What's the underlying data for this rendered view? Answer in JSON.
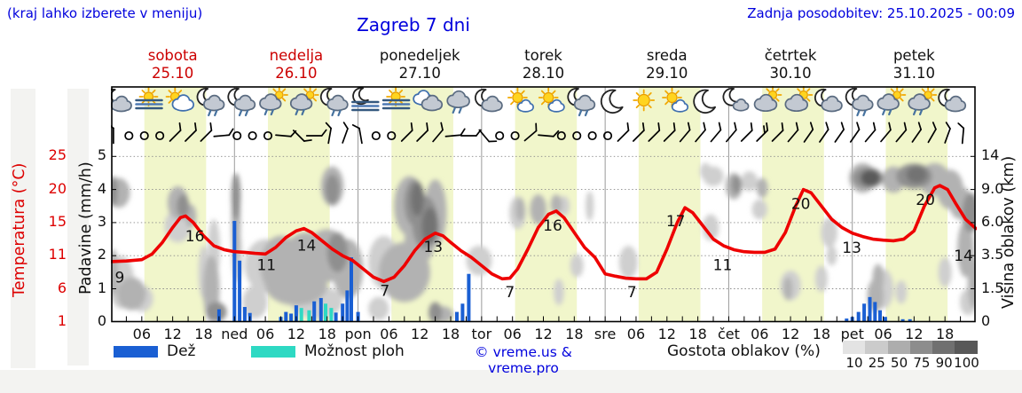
{
  "header": {
    "hint": "(kraj lahko izberete v meniju)",
    "title": "Zagreb 7 dni",
    "updated": "Zadnja posodobitev: 25.10.2025 - 00:09"
  },
  "days": [
    {
      "name": "sobota",
      "date": "25.10",
      "red": true
    },
    {
      "name": "nedelja",
      "date": "26.10",
      "red": true
    },
    {
      "name": "ponedeljek",
      "date": "27.10",
      "red": false
    },
    {
      "name": "torek",
      "date": "28.10",
      "red": false
    },
    {
      "name": "sreda",
      "date": "29.10",
      "red": false
    },
    {
      "name": "četrtek",
      "date": "30.10",
      "red": false
    },
    {
      "name": "petek",
      "date": "31.10",
      "red": false
    }
  ],
  "axes": {
    "temp": {
      "title": "Temperatura (°C)",
      "ticks": [
        "25",
        "20",
        "15",
        "11",
        "6",
        "1"
      ]
    },
    "precip": {
      "title": "Padavine (mm/h)",
      "ticks": [
        "5",
        "4",
        "3",
        "2",
        "1",
        "0"
      ]
    },
    "cloud_height": {
      "title": "Višina oblakov (km)",
      "ticks": [
        "14",
        "9.0",
        "6.0",
        "3.5",
        "1.5",
        "0"
      ]
    },
    "x": {
      "hour_labels": [
        "06",
        "12",
        "18"
      ],
      "day_abbrs": [
        "ned",
        "pon",
        "tor",
        "sre",
        "čet",
        "pet"
      ]
    }
  },
  "legend": {
    "rain": "Dež",
    "showers": "Možnost ploh",
    "copyright": "© vreme.us & vreme.pro",
    "density_title": "Gostota oblakov (%)",
    "density_ticks": [
      "10",
      "25",
      "50",
      "75",
      "90",
      "100"
    ],
    "density_colors": [
      "#e3e3e3",
      "#cbcbcb",
      "#adadad",
      "#8d8d8d",
      "#707070",
      "#585858"
    ]
  },
  "colors": {
    "blue_text": "#0000dd",
    "red_text": "#cc0000",
    "curve": "#ee0000",
    "rain": "#1a5fd3",
    "showers": "#2ed9c3",
    "day_band": "#f1f6cb",
    "grid": "#8a8a8a",
    "border": "#000000"
  },
  "weather_icons": [
    "moon-cloud",
    "sun-fog",
    "sun-cloud",
    "moon-cloud-rain",
    "moon-cloud-rain",
    "sun-cloud-rain",
    "sun-cloud-rain",
    "moon-cloud-rain",
    "moon-fog",
    "sun-fog",
    "cloudy",
    "cloud-rain",
    "moon-cloud",
    "sun-small-cloud",
    "sun-small-cloud",
    "moon-cloud-rain",
    "moon",
    "sun",
    "sun-small-cloud",
    "moon",
    "moon-small-cloud",
    "sun-gray-cloud",
    "sun-gray-cloud",
    "moon-cloud",
    "moon-cloud-rain",
    "sun-cloud-rain",
    "sun-cloud-rain",
    "moon-cloud"
  ],
  "wind": [
    [
      "b",
      -90
    ],
    [
      "c"
    ],
    [
      "c"
    ],
    [
      "c"
    ],
    [
      "b",
      -45
    ],
    [
      "b",
      -45
    ],
    [
      "b",
      -45
    ],
    [
      "b",
      -5
    ],
    [
      "c"
    ],
    [
      "c"
    ],
    [
      "c"
    ],
    [
      "b",
      5
    ],
    [
      "b",
      45
    ],
    [
      "b",
      0
    ],
    [
      "b",
      -80
    ],
    [
      "b",
      -70
    ],
    [
      "b",
      -100
    ],
    [
      "c"
    ],
    [
      "c"
    ],
    [
      "b",
      -45
    ],
    [
      "b",
      -45
    ],
    [
      "b",
      -50
    ],
    [
      "b",
      -5
    ],
    [
      "b",
      0
    ],
    [
      "b",
      50
    ],
    [
      "c"
    ],
    [
      "c"
    ],
    [
      "b",
      -40
    ],
    [
      "b",
      5
    ],
    [
      "c"
    ],
    [
      "c"
    ],
    [
      "c"
    ],
    [
      "c"
    ],
    [
      "b",
      -45
    ],
    [
      "b",
      -45
    ],
    [
      "b",
      -45
    ],
    [
      "b",
      -45
    ],
    [
      "b",
      -50
    ],
    [
      "b",
      -50
    ],
    [
      "b",
      -50
    ],
    [
      "b",
      -50
    ],
    [
      "b",
      -45
    ],
    [
      "b2",
      -45
    ],
    [
      "b",
      -45
    ],
    [
      "b",
      -50
    ],
    [
      "b",
      -55
    ],
    [
      "b",
      -55
    ],
    [
      "b",
      -55
    ],
    [
      "b",
      -55
    ],
    [
      "b",
      -50
    ],
    [
      "b",
      -50
    ],
    [
      "b",
      -50
    ],
    [
      "b",
      -55
    ],
    [
      "b",
      -60
    ],
    [
      "b",
      -70
    ],
    [
      "b",
      -85
    ]
  ],
  "chart_data": {
    "type": "line",
    "title": "Zagreb 7 dni meteogram",
    "hours_total": 168,
    "daylight_hours": [
      6.5,
      18.5
    ],
    "precip_axis_range": [
      0,
      5.33
    ],
    "temp_axis_tick_values": [
      25,
      20,
      15,
      11,
      6,
      1
    ],
    "cloud_axis_tick_km": [
      14,
      9.0,
      6.0,
      3.5,
      1.5,
      0
    ],
    "temperature_curve": [
      [
        0,
        1.82
      ],
      [
        3,
        1.84
      ],
      [
        6,
        1.88
      ],
      [
        8,
        2.05
      ],
      [
        10,
        2.4
      ],
      [
        12,
        2.85
      ],
      [
        13.5,
        3.15
      ],
      [
        14.5,
        3.2
      ],
      [
        16,
        3.0
      ],
      [
        18,
        2.6
      ],
      [
        20,
        2.3
      ],
      [
        22,
        2.18
      ],
      [
        24,
        2.12
      ],
      [
        26,
        2.1
      ],
      [
        28,
        2.07
      ],
      [
        30,
        2.05
      ],
      [
        32,
        2.25
      ],
      [
        34,
        2.55
      ],
      [
        36,
        2.75
      ],
      [
        37.5,
        2.82
      ],
      [
        39,
        2.7
      ],
      [
        41,
        2.45
      ],
      [
        43,
        2.2
      ],
      [
        45,
        2.0
      ],
      [
        47,
        1.85
      ],
      [
        49,
        1.6
      ],
      [
        51,
        1.35
      ],
      [
        53,
        1.22
      ],
      [
        55,
        1.35
      ],
      [
        57,
        1.7
      ],
      [
        59,
        2.15
      ],
      [
        61,
        2.5
      ],
      [
        63,
        2.68
      ],
      [
        64.5,
        2.6
      ],
      [
        66,
        2.4
      ],
      [
        68,
        2.15
      ],
      [
        70,
        1.95
      ],
      [
        72,
        1.7
      ],
      [
        74,
        1.45
      ],
      [
        76,
        1.3
      ],
      [
        77.5,
        1.32
      ],
      [
        79,
        1.6
      ],
      [
        81,
        2.2
      ],
      [
        83,
        2.85
      ],
      [
        85,
        3.25
      ],
      [
        86.5,
        3.35
      ],
      [
        88,
        3.15
      ],
      [
        90,
        2.7
      ],
      [
        92,
        2.25
      ],
      [
        94,
        1.95
      ],
      [
        96,
        1.45
      ],
      [
        98,
        1.38
      ],
      [
        100,
        1.32
      ],
      [
        102,
        1.3
      ],
      [
        104,
        1.3
      ],
      [
        106,
        1.5
      ],
      [
        108,
        2.2
      ],
      [
        110,
        3.0
      ],
      [
        111.5,
        3.45
      ],
      [
        113,
        3.3
      ],
      [
        115,
        2.9
      ],
      [
        117,
        2.5
      ],
      [
        119,
        2.3
      ],
      [
        121,
        2.18
      ],
      [
        123,
        2.12
      ],
      [
        125,
        2.1
      ],
      [
        127,
        2.1
      ],
      [
        129,
        2.2
      ],
      [
        131,
        2.7
      ],
      [
        133,
        3.5
      ],
      [
        134.5,
        4.0
      ],
      [
        136,
        3.9
      ],
      [
        138,
        3.5
      ],
      [
        140,
        3.1
      ],
      [
        142,
        2.85
      ],
      [
        144,
        2.68
      ],
      [
        146,
        2.58
      ],
      [
        148,
        2.5
      ],
      [
        150,
        2.47
      ],
      [
        152,
        2.45
      ],
      [
        154,
        2.5
      ],
      [
        156,
        2.75
      ],
      [
        158,
        3.5
      ],
      [
        160,
        4.05
      ],
      [
        161,
        4.12
      ],
      [
        162.5,
        4.0
      ],
      [
        164,
        3.6
      ],
      [
        166,
        3.1
      ],
      [
        168,
        2.82
      ]
    ],
    "temperature_point_labels": [
      [
        1.7,
        1.35,
        "9"
      ],
      [
        16.3,
        2.6,
        "16"
      ],
      [
        30.2,
        1.72,
        "11"
      ],
      [
        38,
        2.32,
        "14"
      ],
      [
        53.2,
        0.95,
        "7"
      ],
      [
        62.6,
        2.28,
        "13"
      ],
      [
        77.5,
        0.9,
        "7"
      ],
      [
        85.8,
        2.92,
        "16"
      ],
      [
        101.2,
        0.9,
        "7"
      ],
      [
        109.7,
        3.05,
        "17"
      ],
      [
        118.8,
        1.72,
        "11"
      ],
      [
        134,
        3.58,
        "20"
      ],
      [
        143.9,
        2.25,
        "13"
      ],
      [
        158.2,
        3.7,
        "20"
      ],
      [
        165.6,
        2.0,
        "14"
      ]
    ],
    "precipitation_bars": [
      [
        21,
        0.38,
        "rain"
      ],
      [
        24,
        3.05,
        "rain"
      ],
      [
        25,
        1.85,
        "rain"
      ],
      [
        26,
        0.45,
        "rain"
      ],
      [
        27,
        0.27,
        "rain"
      ],
      [
        33,
        0.15,
        "rain"
      ],
      [
        34,
        0.3,
        "rain"
      ],
      [
        35,
        0.25,
        "rain"
      ],
      [
        36,
        0.5,
        "rain"
      ],
      [
        37,
        0.42,
        "showers"
      ],
      [
        38.5,
        0.35,
        "showers"
      ],
      [
        39.5,
        0.62,
        "rain"
      ],
      [
        40.8,
        0.72,
        "rain"
      ],
      [
        41.7,
        0.55,
        "showers"
      ],
      [
        42.8,
        0.42,
        "showers"
      ],
      [
        43.7,
        0.28,
        "rain"
      ],
      [
        45,
        0.55,
        "rain"
      ],
      [
        45.9,
        0.95,
        "rain"
      ],
      [
        46.7,
        1.95,
        "rain"
      ],
      [
        48,
        0.3,
        "rain"
      ],
      [
        67.2,
        0.3,
        "rain"
      ],
      [
        68.3,
        0.55,
        "rain"
      ],
      [
        69.5,
        1.45,
        "rain"
      ],
      [
        142.9,
        0.1,
        "rain"
      ],
      [
        144,
        0.15,
        "rain"
      ],
      [
        145.2,
        0.3,
        "rain"
      ],
      [
        146.3,
        0.55,
        "rain"
      ],
      [
        147.4,
        0.75,
        "rain"
      ],
      [
        148.4,
        0.6,
        "rain"
      ],
      [
        149.4,
        0.35,
        "rain"
      ],
      [
        150.4,
        0.15,
        "rain"
      ],
      [
        153.8,
        0.08,
        "rain"
      ],
      [
        155.2,
        0.08,
        "rain"
      ]
    ],
    "cloud_blobs": [
      [
        0.4,
        3.95,
        0.9,
        0.45,
        75
      ],
      [
        1.5,
        3.9,
        2.2,
        0.45,
        50
      ],
      [
        0.5,
        1.5,
        0.9,
        0.7,
        50
      ],
      [
        2,
        1.2,
        2.5,
        0.8,
        25
      ],
      [
        4,
        0.85,
        2.8,
        0.5,
        50
      ],
      [
        6,
        0.7,
        2.2,
        0.4,
        25
      ],
      [
        13,
        3.6,
        2,
        0.5,
        50
      ],
      [
        14,
        3.5,
        1.2,
        0.35,
        75
      ],
      [
        15.5,
        3.2,
        1.1,
        0.35,
        50
      ],
      [
        13,
        2.9,
        2.6,
        0.5,
        25
      ],
      [
        18,
        1.5,
        1,
        0.8,
        25
      ],
      [
        19.5,
        1,
        1.6,
        1,
        50
      ],
      [
        20,
        2.2,
        1.2,
        0.9,
        25
      ],
      [
        20.5,
        0.3,
        2,
        0.3,
        75
      ],
      [
        24.3,
        3.8,
        0.9,
        0.7,
        75
      ],
      [
        24.3,
        3.0,
        0.9,
        1.2,
        50
      ],
      [
        24.5,
        2.0,
        1,
        0.8,
        25
      ],
      [
        30,
        1.7,
        4,
        0.8,
        25
      ],
      [
        33,
        1.7,
        4,
        0.9,
        50
      ],
      [
        38,
        1.8,
        5,
        0.9,
        50
      ],
      [
        36,
        1.1,
        6,
        0.6,
        50
      ],
      [
        28,
        0.6,
        2.4,
        0.5,
        25
      ],
      [
        40,
        0.6,
        5,
        0.5,
        25
      ],
      [
        42,
        2.0,
        4,
        0.8,
        50
      ],
      [
        44,
        2.1,
        2,
        0.6,
        75
      ],
      [
        46,
        1.6,
        3,
        0.9,
        50
      ],
      [
        43,
        4.0,
        1.4,
        0.45,
        75
      ],
      [
        43,
        4.1,
        2.2,
        0.6,
        50
      ],
      [
        52,
        0.4,
        2,
        0.35,
        25
      ],
      [
        53,
        1.8,
        3,
        0.8,
        25
      ],
      [
        57,
        1.5,
        5,
        0.9,
        50
      ],
      [
        58,
        3.5,
        3,
        0.9,
        50
      ],
      [
        59,
        3.6,
        2,
        0.7,
        75
      ],
      [
        59.5,
        3.7,
        1.3,
        0.5,
        90
      ],
      [
        61,
        3.0,
        2.5,
        0.8,
        75
      ],
      [
        62,
        2.9,
        1.6,
        0.55,
        90
      ],
      [
        60,
        2.45,
        3,
        0.7,
        50
      ],
      [
        63,
        3.3,
        2.2,
        1,
        50
      ],
      [
        63,
        0.28,
        1.3,
        0.32,
        75
      ],
      [
        64.5,
        0.22,
        2,
        0.25,
        50
      ],
      [
        71.5,
        1.85,
        2.5,
        0.45,
        25
      ],
      [
        79,
        3.3,
        1.6,
        0.5,
        25
      ],
      [
        79.5,
        3.4,
        0.9,
        0.35,
        50
      ],
      [
        83,
        3.4,
        1.6,
        0.45,
        50
      ],
      [
        86.5,
        3.55,
        1.1,
        0.3,
        50
      ],
      [
        88,
        3.5,
        1.1,
        0.3,
        25
      ],
      [
        93,
        3.5,
        0.8,
        0.45,
        25
      ],
      [
        90.5,
        1.7,
        1.3,
        0.35,
        25
      ],
      [
        87,
        0.9,
        1,
        0.4,
        25
      ],
      [
        100.5,
        1.8,
        1.8,
        0.5,
        25
      ],
      [
        115.5,
        4.55,
        1.1,
        0.25,
        25
      ],
      [
        116.5,
        2.85,
        1.6,
        0.4,
        25
      ],
      [
        117,
        4.4,
        2,
        0.3,
        25
      ],
      [
        121,
        4.1,
        1.6,
        0.4,
        50
      ],
      [
        121.5,
        4.15,
        0.9,
        0.28,
        75
      ],
      [
        124,
        4.25,
        1.6,
        0.3,
        25
      ],
      [
        126.5,
        4.05,
        1.1,
        0.3,
        50
      ],
      [
        126,
        3.4,
        1.5,
        0.3,
        25
      ],
      [
        132,
        1.1,
        2,
        0.45,
        25
      ],
      [
        131.5,
        1.0,
        0.9,
        0.35,
        50
      ],
      [
        138,
        1.3,
        1.2,
        0.4,
        25
      ],
      [
        139.5,
        2.7,
        1.6,
        0.45,
        25
      ],
      [
        140,
        2.0,
        1,
        0.3,
        25
      ],
      [
        146,
        4.35,
        2.6,
        0.45,
        50
      ],
      [
        147,
        4.35,
        3,
        0.32,
        75
      ],
      [
        147.5,
        4.35,
        1.9,
        0.24,
        100
      ],
      [
        152,
        4.3,
        2.2,
        0.4,
        50
      ],
      [
        156,
        4.4,
        3.5,
        0.38,
        75
      ],
      [
        156.5,
        4.45,
        2,
        0.26,
        90
      ],
      [
        160,
        4.3,
        3,
        0.5,
        50
      ],
      [
        163,
        4.0,
        2.6,
        0.6,
        50
      ],
      [
        165,
        3.6,
        2.2,
        0.5,
        50
      ],
      [
        167,
        3.3,
        1.6,
        0.6,
        75
      ],
      [
        149,
        1.3,
        1.1,
        0.45,
        50
      ],
      [
        148.5,
        0.8,
        1.6,
        0.5,
        50
      ],
      [
        150,
        1.0,
        2,
        0.6,
        25
      ],
      [
        153.5,
        0.9,
        1.1,
        0.35,
        25
      ],
      [
        162,
        1.5,
        1.3,
        0.45,
        25
      ],
      [
        166,
        2.2,
        1.6,
        0.85,
        50
      ],
      [
        167.5,
        1.2,
        1.1,
        0.8,
        50
      ],
      [
        166.5,
        0.6,
        1.6,
        0.4,
        25
      ]
    ],
    "cloud_shades": {
      "25": "#cfcfcf",
      "50": "#b2b2b2",
      "75": "#8f8f8f",
      "90": "#737373",
      "100": "#5a5a5a"
    }
  }
}
